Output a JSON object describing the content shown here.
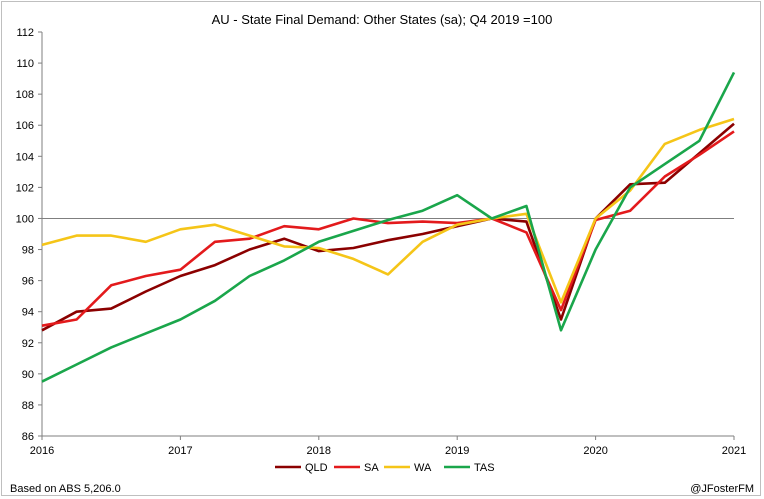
{
  "chart_data": {
    "type": "line",
    "title": "AU - State Final Demand: Other States (sa); Q4 2019 =100",
    "xlabel": "",
    "ylabel": "",
    "xlim": [
      2016,
      2021
    ],
    "ylim": [
      86,
      112
    ],
    "y_ticks": [
      86,
      88,
      90,
      92,
      94,
      96,
      98,
      100,
      102,
      104,
      106,
      108,
      110,
      112
    ],
    "x_ticks": [
      2016,
      2017,
      2018,
      2019,
      2020,
      2021
    ],
    "grid": false,
    "reference_line": 100,
    "legend": {
      "placement": "bottom"
    },
    "series": [
      {
        "name": "QLD",
        "color": "#8b0000",
        "points": [
          [
            2016.0,
            92.8
          ],
          [
            2016.25,
            94.0
          ],
          [
            2016.5,
            94.2
          ],
          [
            2016.75,
            95.3
          ],
          [
            2017.0,
            96.3
          ],
          [
            2017.25,
            97.0
          ],
          [
            2017.5,
            98.0
          ],
          [
            2017.75,
            98.7
          ],
          [
            2018.0,
            97.9
          ],
          [
            2018.25,
            98.1
          ],
          [
            2018.5,
            98.6
          ],
          [
            2018.75,
            99.0
          ],
          [
            2019.0,
            99.5
          ],
          [
            2019.25,
            100.0
          ],
          [
            2019.5,
            99.8
          ],
          [
            2019.75,
            93.5
          ],
          [
            2020.0,
            100.0
          ],
          [
            2020.25,
            102.2
          ],
          [
            2020.5,
            102.3
          ],
          [
            2020.75,
            104.2
          ],
          [
            2021.0,
            106.1
          ]
        ]
      },
      {
        "name": "SA",
        "color": "#e31a1c",
        "points": [
          [
            2016.0,
            93.1
          ],
          [
            2016.25,
            93.5
          ],
          [
            2016.5,
            95.7
          ],
          [
            2016.75,
            96.3
          ],
          [
            2017.0,
            96.7
          ],
          [
            2017.25,
            98.5
          ],
          [
            2017.5,
            98.7
          ],
          [
            2017.75,
            99.5
          ],
          [
            2018.0,
            99.3
          ],
          [
            2018.25,
            100.0
          ],
          [
            2018.5,
            99.7
          ],
          [
            2018.75,
            99.8
          ],
          [
            2019.0,
            99.7
          ],
          [
            2019.25,
            100.0
          ],
          [
            2019.5,
            99.1
          ],
          [
            2019.75,
            94.1
          ],
          [
            2020.0,
            99.9
          ],
          [
            2020.25,
            100.5
          ],
          [
            2020.5,
            102.7
          ],
          [
            2020.75,
            104.1
          ],
          [
            2021.0,
            105.6
          ]
        ]
      },
      {
        "name": "WA",
        "color": "#f5c518",
        "points": [
          [
            2016.0,
            98.3
          ],
          [
            2016.25,
            98.9
          ],
          [
            2016.5,
            98.9
          ],
          [
            2016.75,
            98.5
          ],
          [
            2017.0,
            99.3
          ],
          [
            2017.25,
            99.6
          ],
          [
            2017.5,
            98.9
          ],
          [
            2017.75,
            98.2
          ],
          [
            2018.0,
            98.1
          ],
          [
            2018.25,
            97.4
          ],
          [
            2018.5,
            96.4
          ],
          [
            2018.75,
            98.5
          ],
          [
            2019.0,
            99.6
          ],
          [
            2019.25,
            100.0
          ],
          [
            2019.5,
            100.3
          ],
          [
            2019.75,
            94.6
          ],
          [
            2020.0,
            100.0
          ],
          [
            2020.25,
            101.8
          ],
          [
            2020.5,
            104.8
          ],
          [
            2020.75,
            105.7
          ],
          [
            2021.0,
            106.4
          ]
        ]
      },
      {
        "name": "TAS",
        "color": "#1aa64b",
        "points": [
          [
            2016.0,
            89.5
          ],
          [
            2016.25,
            90.6
          ],
          [
            2016.5,
            91.7
          ],
          [
            2016.75,
            92.6
          ],
          [
            2017.0,
            93.5
          ],
          [
            2017.25,
            94.7
          ],
          [
            2017.5,
            96.3
          ],
          [
            2017.75,
            97.3
          ],
          [
            2018.0,
            98.5
          ],
          [
            2018.25,
            99.2
          ],
          [
            2018.5,
            99.9
          ],
          [
            2018.75,
            100.5
          ],
          [
            2019.0,
            101.5
          ],
          [
            2019.25,
            100.0
          ],
          [
            2019.5,
            100.8
          ],
          [
            2019.75,
            92.8
          ],
          [
            2020.0,
            98.0
          ],
          [
            2020.25,
            102.0
          ],
          [
            2020.5,
            103.5
          ],
          [
            2020.75,
            105.0
          ],
          [
            2021.0,
            109.4
          ]
        ]
      }
    ],
    "source_note": "Based on ABS 5,206.0",
    "credit": "@JFosterFM"
  }
}
